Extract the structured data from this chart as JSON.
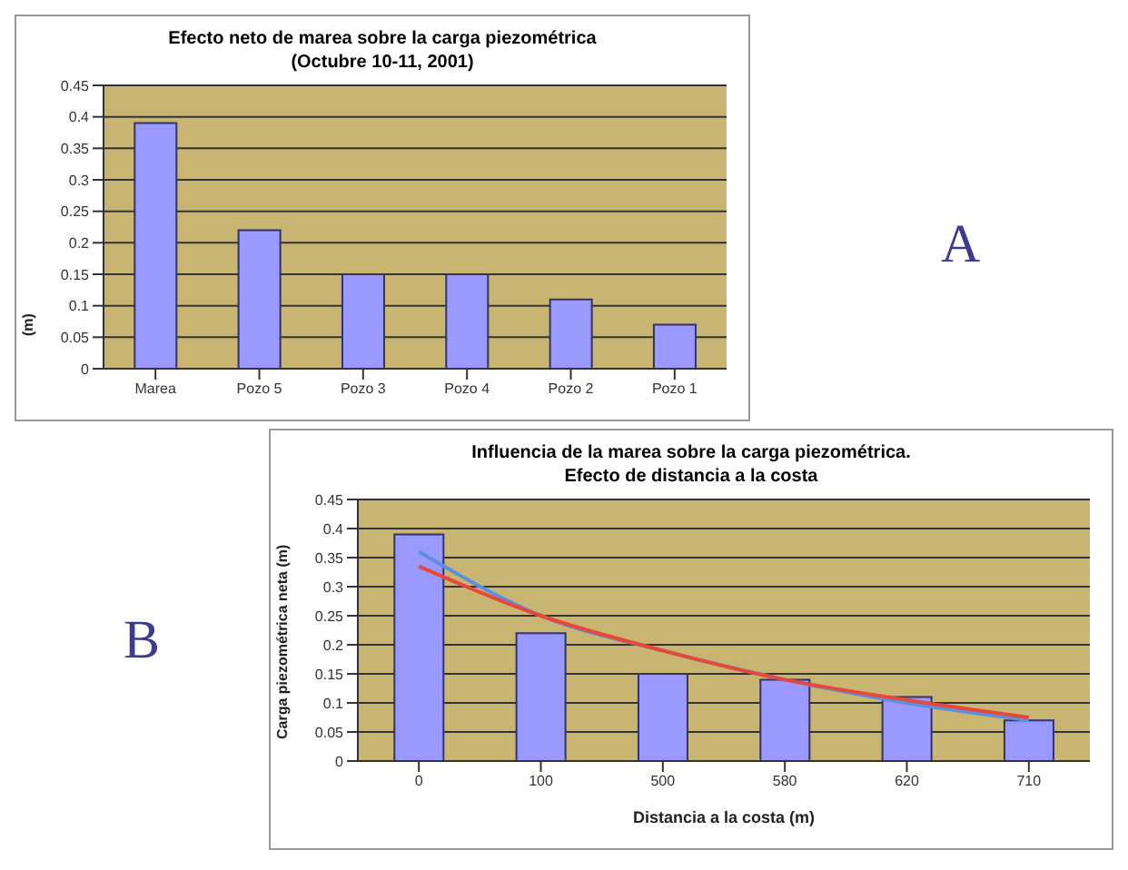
{
  "chart_data": [
    {
      "type": "bar",
      "title": "Efecto neto de marea sobre la carga piezométrica",
      "subtitle": "(Octubre 10-11, 2001)",
      "ylabel": "(m)",
      "annotations": [
        "A"
      ],
      "categories": [
        "Marea",
        "Pozo 5",
        "Pozo 3",
        "Pozo 4",
        "Pozo 2",
        "Pozo 1"
      ],
      "series": [
        {
          "color": "#9999ff",
          "values": [
            0.39,
            0.22,
            0.15,
            0.15,
            0.11,
            0.07
          ]
        }
      ],
      "ylim": [
        0,
        0.45
      ],
      "yticks": [
        0,
        0.05,
        0.1,
        0.15,
        0.2,
        0.25,
        0.3,
        0.35,
        0.4,
        0.45
      ],
      "grid": "y",
      "legend": false
    },
    {
      "type": "bar",
      "title": "Influencia de la marea sobre la carga piezométrica.",
      "subtitle": "Efecto de distancia a la costa",
      "xlabel": "Distancia a la costa (m)",
      "ylabel": "Carga piezométrica neta (m)",
      "annotations": [
        "B"
      ],
      "categories": [
        "0",
        "100",
        "500",
        "580",
        "620",
        "710"
      ],
      "series": [
        {
          "color": "#9999ff",
          "values": [
            0.39,
            0.22,
            0.15,
            0.14,
            0.11,
            0.07
          ]
        },
        {
          "type": "line",
          "color": "#5b8fe0",
          "values": [
            0.36,
            0.25,
            0.19,
            0.14,
            0.1,
            0.07
          ]
        },
        {
          "type": "line",
          "color": "#e8483a",
          "values": [
            0.335,
            0.25,
            0.19,
            0.14,
            0.105,
            0.075
          ]
        }
      ],
      "ylim": [
        0,
        0.45
      ],
      "yticks": [
        0,
        0.05,
        0.1,
        0.15,
        0.2,
        0.25,
        0.3,
        0.35,
        0.4,
        0.45
      ],
      "grid": "y",
      "legend": false,
      "marker": "none"
    }
  ]
}
